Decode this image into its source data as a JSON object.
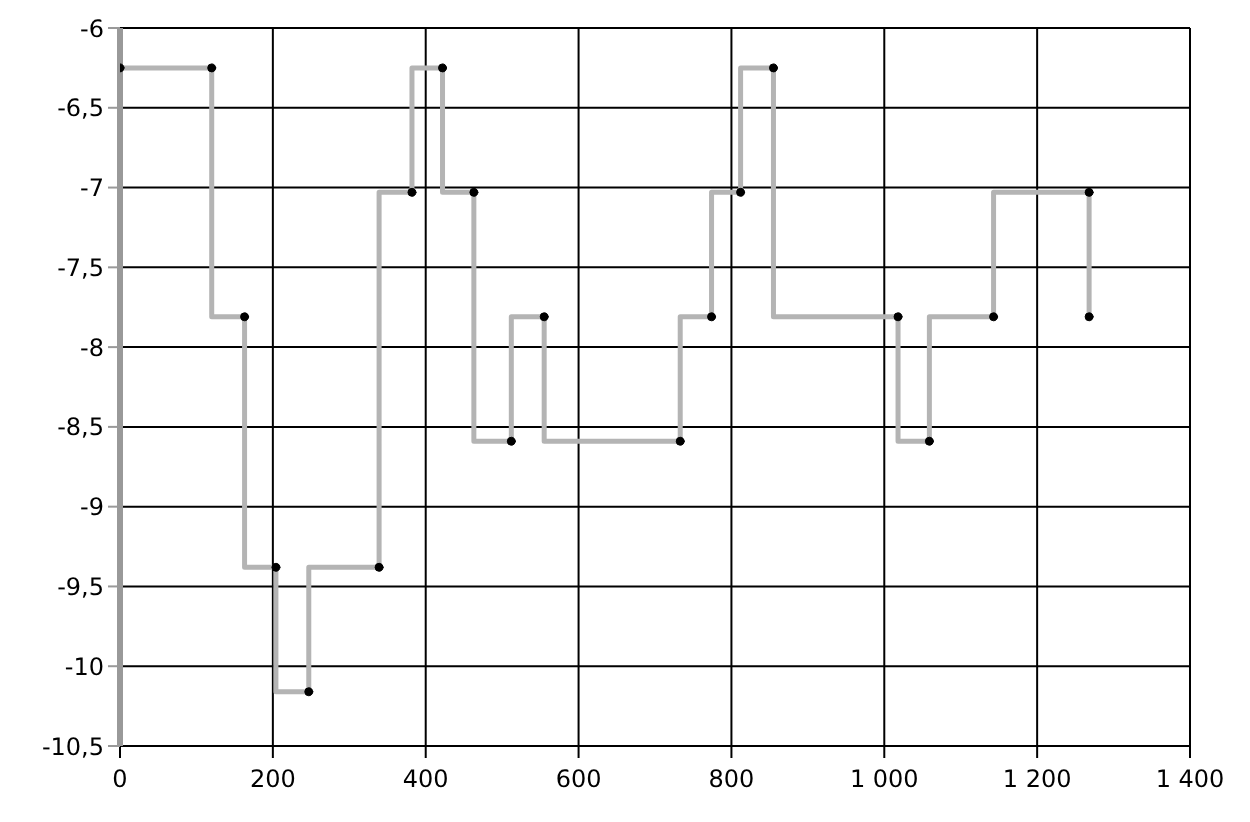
{
  "chart_data": {
    "type": "step",
    "x": [
      0,
      120,
      163,
      204,
      247,
      339,
      382,
      422,
      463,
      512,
      555,
      733,
      774,
      812,
      855,
      1018,
      1059,
      1143,
      1268,
      1268
    ],
    "series": [
      {
        "color": "#b4b4b4",
        "values": [
          -6.25,
          -6.25,
          -7.81,
          -9.38,
          -10.16,
          -9.38,
          -7.03,
          -6.25,
          -7.03,
          -8.59,
          -7.81,
          -8.59,
          -7.81,
          -7.03,
          -6.25,
          -7.81,
          -8.59,
          -7.81,
          -7.03,
          -7.81
        ]
      }
    ],
    "xlim": [
      0,
      1400
    ],
    "xticks": [
      0,
      200,
      400,
      600,
      800,
      {
        "value": 1000,
        "label": "1 000"
      },
      {
        "value": 1200,
        "label": "1 200"
      },
      {
        "value": 1400,
        "label": "1 400"
      }
    ],
    "ylim": [
      -10.5,
      -6
    ],
    "yticks": [
      -6,
      {
        "value": -6.5,
        "label": "-6,5"
      },
      -7,
      {
        "value": -7.5,
        "label": "-7,5"
      },
      -8,
      {
        "value": -8.5,
        "label": "-8,5"
      },
      -9,
      {
        "value": -9.5,
        "label": "-9,5"
      },
      -10,
      {
        "value": -10.5,
        "label": "-10,5"
      }
    ],
    "grid": true,
    "marker": "circle",
    "line_style": "solid",
    "legend": false
  }
}
